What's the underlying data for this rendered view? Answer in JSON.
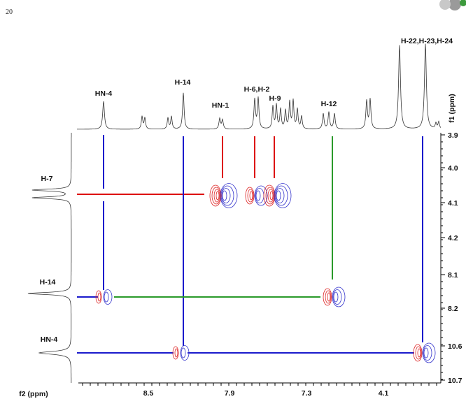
{
  "page_number": "20",
  "figure": {
    "top_peaks": [
      "HN-4",
      "H-14",
      "HN-1",
      "H-6,H-2",
      "H-9",
      "H-12",
      "H-22,H-23,H-24"
    ],
    "left_peaks": [
      "H-7",
      "H-14",
      "HN-4"
    ],
    "f1_label": "f1 (ppm)",
    "f2_label": "f2 (ppm)",
    "f1_ticks": [
      "3.9",
      "4.0",
      "4.1",
      "4.2",
      "8.1",
      "8.2",
      "10.6",
      "10.7"
    ],
    "f2_ticks": [
      "8.5",
      "7.9",
      "7.3",
      "4.1"
    ]
  }
}
